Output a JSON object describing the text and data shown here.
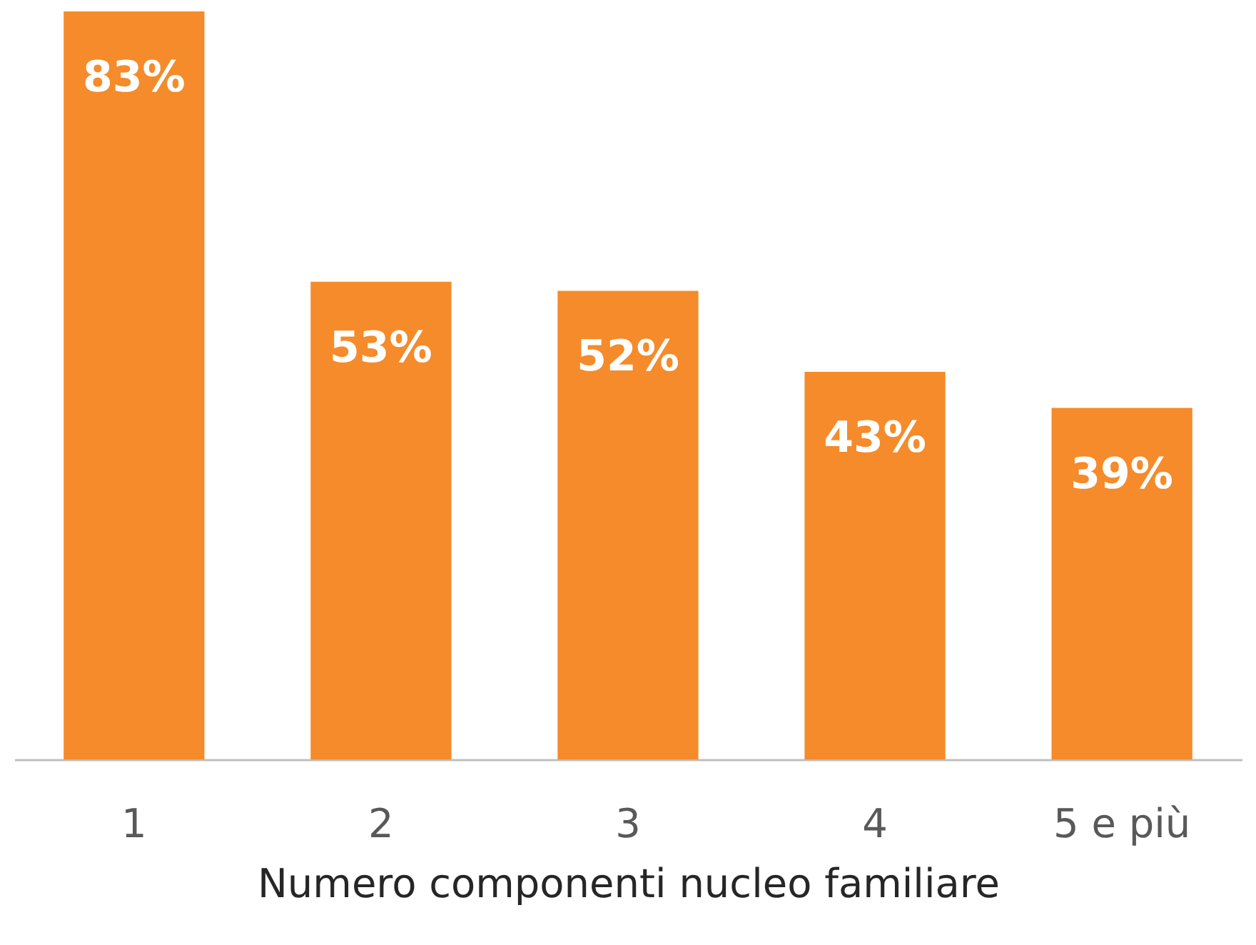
{
  "chart_data": {
    "type": "bar",
    "xlabel": "Numero componenti nucleo familiare",
    "categories": [
      "1",
      "2",
      "3",
      "4",
      "5 e più"
    ],
    "values": [
      83,
      53,
      52,
      43,
      39
    ],
    "value_labels": [
      "83%",
      "53%",
      "52%",
      "43%",
      "39%"
    ],
    "color": "#f58b2a"
  }
}
